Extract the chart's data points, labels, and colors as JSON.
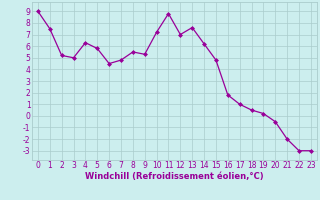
{
  "x": [
    0,
    1,
    2,
    3,
    4,
    5,
    6,
    7,
    8,
    9,
    10,
    11,
    12,
    13,
    14,
    15,
    16,
    17,
    18,
    19,
    20,
    21,
    22,
    23
  ],
  "y": [
    9.0,
    7.5,
    5.2,
    5.0,
    6.3,
    5.8,
    4.5,
    4.8,
    5.5,
    5.3,
    7.2,
    8.8,
    7.0,
    7.6,
    6.2,
    4.8,
    1.8,
    1.0,
    0.5,
    0.2,
    -0.5,
    -2.0,
    -3.0,
    -3.0
  ],
  "line_color": "#990099",
  "marker": "D",
  "marker_size": 2,
  "bg_color": "#cceeee",
  "grid_color": "#aacccc",
  "xlabel": "Windchill (Refroidissement éolien,°C)",
  "xlim": [
    -0.5,
    23.5
  ],
  "ylim": [
    -3.8,
    9.8
  ],
  "yticks": [
    -3,
    -2,
    -1,
    0,
    1,
    2,
    3,
    4,
    5,
    6,
    7,
    8,
    9
  ],
  "xticks": [
    0,
    1,
    2,
    3,
    4,
    5,
    6,
    7,
    8,
    9,
    10,
    11,
    12,
    13,
    14,
    15,
    16,
    17,
    18,
    19,
    20,
    21,
    22,
    23
  ],
  "tick_label_color": "#990099",
  "xlabel_color": "#990099",
  "xlabel_fontsize": 6.0,
  "tick_fontsize": 5.5
}
